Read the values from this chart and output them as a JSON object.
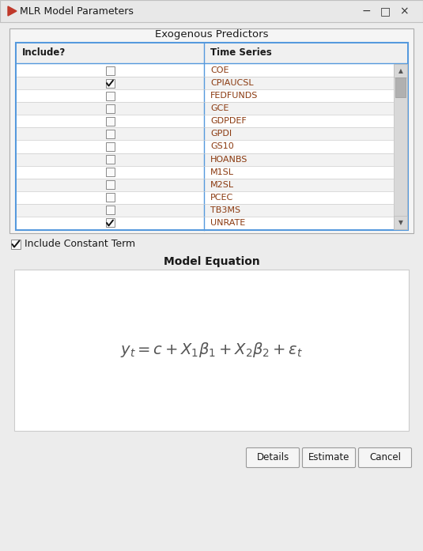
{
  "title": "MLR Model Parameters",
  "bg_color": "#ececec",
  "table_section_label": "Exogenous Predictors",
  "col_headers": [
    "Include?",
    "Time Series"
  ],
  "rows": [
    {
      "label": "COE",
      "checked": false
    },
    {
      "label": "CPIAUCSL",
      "checked": true
    },
    {
      "label": "FEDFUNDS",
      "checked": false
    },
    {
      "label": "GCE",
      "checked": false
    },
    {
      "label": "GDPDEF",
      "checked": false
    },
    {
      "label": "GPDI",
      "checked": false
    },
    {
      "label": "GS10",
      "checked": false
    },
    {
      "label": "HOANBS",
      "checked": false
    },
    {
      "label": "M1SL",
      "checked": false
    },
    {
      "label": "M2SL",
      "checked": false
    },
    {
      "label": "PCEC",
      "checked": false
    },
    {
      "label": "TB3MS",
      "checked": false
    },
    {
      "label": "UNRATE",
      "checked": true
    }
  ],
  "include_constant_checked": true,
  "include_constant_label": "Include Constant Term",
  "equation_section_label": "Model Equation",
  "equation": "$y_t = c + X_1\\beta_1 + X_2\\beta_2 + \\varepsilon_t$",
  "buttons": [
    "Details",
    "Estimate",
    "Cancel"
  ],
  "table_border_color": "#5599dd",
  "row_odd_color": "#f2f2f2",
  "row_even_color": "#ffffff",
  "header_bg": "#f0f0f0",
  "text_color_series": "#8B3A10",
  "text_color_dark": "#1a1a1a",
  "equation_box_color": "#ffffff",
  "button_bg": "#f5f5f5",
  "button_border": "#999999",
  "titlebar_bg": "#e8e8e8",
  "titlebar_border": "#c0c0c0",
  "section_border": "#aaaaaa",
  "scrollbar_bg": "#d8d8d8",
  "scrollbar_thumb": "#b0b0b0"
}
